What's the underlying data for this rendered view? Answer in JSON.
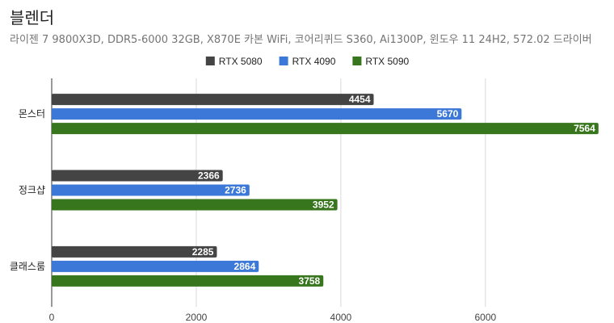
{
  "chart_data": {
    "type": "bar",
    "orientation": "horizontal",
    "title": "블렌더",
    "subtitle": "라이젠 7 9800X3D, DDR5-6000 32GB, X870E 카본 WiFi, 코어리퀴드 S360, Ai1300P, 윈도우 11 24H2, 572.02 드라이버",
    "categories": [
      "몬스터",
      "정크샵",
      "클래스룸"
    ],
    "series": [
      {
        "name": "RTX 5080",
        "color": "#444444",
        "values": [
          4454,
          2366,
          2285
        ]
      },
      {
        "name": "RTX 4090",
        "color": "#3c78d8",
        "values": [
          5670,
          2736,
          2864
        ]
      },
      {
        "name": "RTX 5090",
        "color": "#38761d",
        "values": [
          7564,
          3952,
          3758
        ]
      }
    ],
    "xlim": [
      0,
      7600
    ],
    "xticks": [
      0,
      2000,
      4000,
      6000
    ],
    "grid": true,
    "legend_position": "top-center",
    "data_labels": true
  }
}
